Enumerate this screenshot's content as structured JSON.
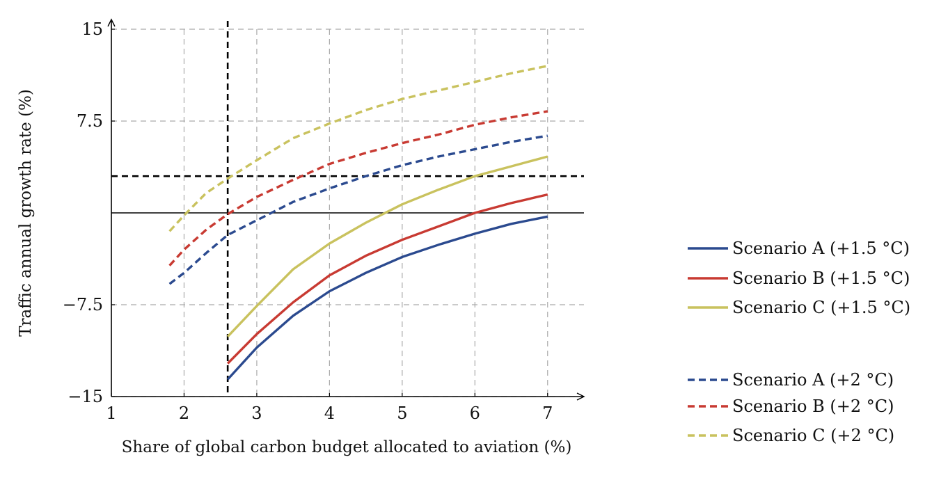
{
  "chart_data": {
    "type": "line",
    "xlabel": "Share of global carbon budget allocated to aviation (%)",
    "ylabel": "Traffic annual growth rate (%)",
    "xlim": [
      1,
      7.5
    ],
    "ylim": [
      -15,
      15
    ],
    "xticks": [
      1,
      2,
      3,
      4,
      5,
      6,
      7
    ],
    "xtick_labels": [
      "1",
      "2",
      "3",
      "4",
      "5",
      "6",
      "7"
    ],
    "yticks": [
      -15,
      -7.5,
      7.5,
      15
    ],
    "ytick_labels": [
      "−15",
      "−7.5",
      "7.5",
      "15"
    ],
    "grid": true,
    "legend_position": "right",
    "reference_lines": {
      "zero_line_y": 0,
      "dashed_vertical_x": 2.6,
      "dashed_horizontal_y": 3
    },
    "series": [
      {
        "name": "Scenario A (+1.5 °C)",
        "color": "#2b4a8f",
        "style": "solid",
        "x": [
          2.6,
          3,
          3.5,
          4,
          4.5,
          5,
          5.5,
          6,
          6.5,
          7
        ],
        "y": [
          -13.6,
          -11,
          -8.4,
          -6.4,
          -4.9,
          -3.6,
          -2.6,
          -1.7,
          -0.9,
          -0.3
        ]
      },
      {
        "name": "Scenario B (+1.5 °C)",
        "color": "#c83a32",
        "style": "solid",
        "x": [
          2.6,
          3,
          3.5,
          4,
          4.5,
          5,
          5.5,
          6,
          6.5,
          7
        ],
        "y": [
          -12.3,
          -9.9,
          -7.3,
          -5.1,
          -3.5,
          -2.2,
          -1.1,
          0,
          0.8,
          1.5
        ]
      },
      {
        "name": "Scenario C (+1.5 °C)",
        "color": "#c9c25e",
        "style": "solid",
        "x": [
          2.6,
          3,
          3.5,
          4,
          4.5,
          5,
          5.5,
          6,
          6.5,
          7
        ],
        "y": [
          -10.1,
          -7.6,
          -4.6,
          -2.5,
          -0.8,
          0.7,
          1.9,
          3,
          3.8,
          4.6
        ]
      },
      {
        "name": "Scenario A (+2 °C)",
        "color": "#2b4a8f",
        "style": "dashed",
        "x": [
          1.8,
          2,
          2.3,
          2.6,
          3,
          3.5,
          4,
          4.5,
          5,
          5.5,
          6,
          6.5,
          7
        ],
        "y": [
          -5.8,
          -4.9,
          -3.3,
          -1.8,
          -0.6,
          0.9,
          2,
          3,
          3.9,
          4.6,
          5.2,
          5.8,
          6.3
        ]
      },
      {
        "name": "Scenario B (+2 °C)",
        "color": "#c83a32",
        "style": "dashed",
        "x": [
          1.8,
          2,
          2.3,
          2.6,
          3,
          3.5,
          4,
          4.5,
          5,
          5.5,
          6,
          6.5,
          7
        ],
        "y": [
          -4.3,
          -3,
          -1.4,
          -0.1,
          1.3,
          2.7,
          4,
          4.9,
          5.7,
          6.4,
          7.2,
          7.8,
          8.3
        ]
      },
      {
        "name": "Scenario C (+2 °C)",
        "color": "#c9c25e",
        "style": "dashed",
        "x": [
          1.8,
          2,
          2.3,
          2.6,
          3,
          3.5,
          4,
          4.5,
          5,
          5.5,
          6,
          6.5,
          7
        ],
        "y": [
          -1.5,
          -0.2,
          1.6,
          2.8,
          4.3,
          6.1,
          7.3,
          8.4,
          9.3,
          10,
          10.7,
          11.4,
          12
        ]
      }
    ]
  }
}
